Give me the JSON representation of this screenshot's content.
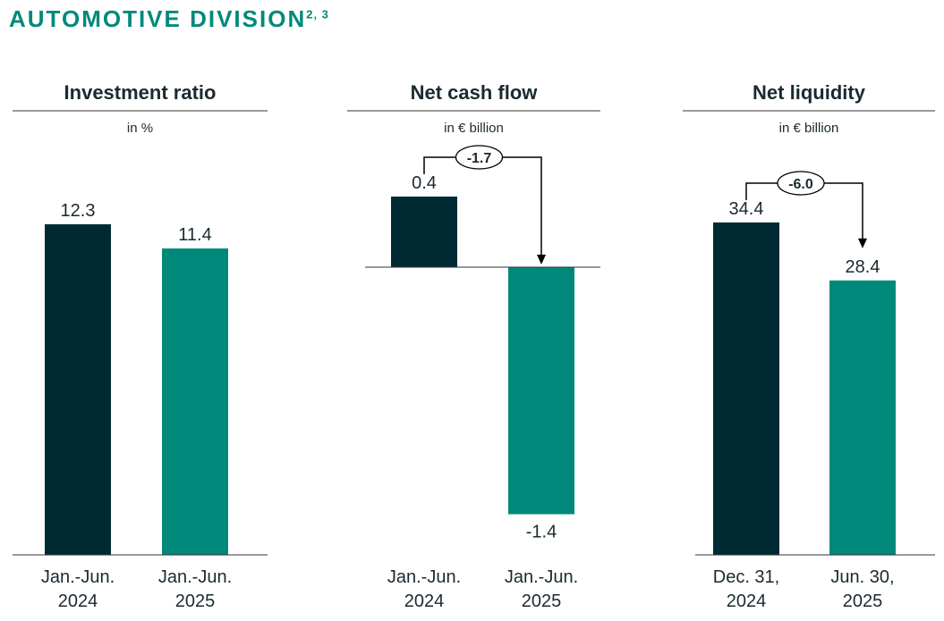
{
  "page": {
    "title": "AUTOMOTIVE DIVISION",
    "footnote_ref": "2, 3"
  },
  "colors": {
    "title": "#00897b",
    "dark_bar": "#002a33",
    "teal_bar": "#00897b",
    "text": "#1a2a30",
    "arrow": "#000000"
  },
  "chart_data": [
    {
      "type": "bar",
      "title": "Investment ratio",
      "unit": "in %",
      "categories": [
        [
          "Jan.-Jun.",
          "2024"
        ],
        [
          "Jan.-Jun.",
          "2025"
        ]
      ],
      "values": [
        12.3,
        11.4
      ],
      "value_labels": [
        "12.3",
        "11.4"
      ],
      "ylim": [
        0,
        14.5
      ],
      "baseline": "bottom",
      "grid": false,
      "legend": "none"
    },
    {
      "type": "bar",
      "title": "Net cash flow",
      "unit": "in € billion",
      "categories": [
        [
          "Jan.-Jun.",
          "2024"
        ],
        [
          "Jan.-Jun.",
          "2025"
        ]
      ],
      "values": [
        0.4,
        -1.4
      ],
      "value_labels": [
        "0.4",
        "-1.4"
      ],
      "ylim": [
        -1.5,
        0.75
      ],
      "baseline": "zero",
      "annotation": {
        "text": "-1.7",
        "from": 0,
        "to": 1
      },
      "grid": false,
      "legend": "none"
    },
    {
      "type": "bar",
      "title": "Net liquidity",
      "unit": "in € billion",
      "categories": [
        [
          "Dec. 31,",
          "2024"
        ],
        [
          "Jun. 30,",
          "2025"
        ]
      ],
      "values": [
        34.4,
        28.4
      ],
      "value_labels": [
        "34.4",
        "28.4"
      ],
      "ylim": [
        0,
        40.2
      ],
      "baseline": "bottom",
      "annotation": {
        "text": "-6.0",
        "from": 0,
        "to": 1
      },
      "grid": false,
      "legend": "none"
    }
  ]
}
